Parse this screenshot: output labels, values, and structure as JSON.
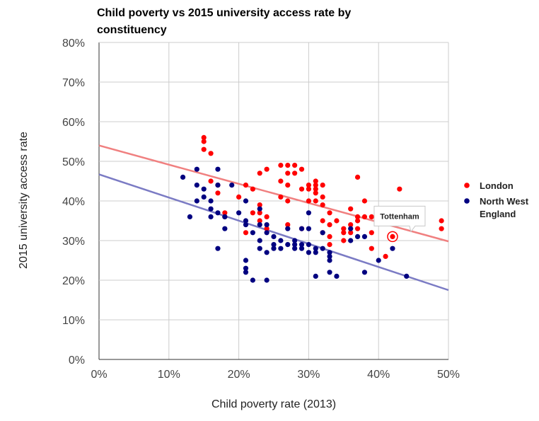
{
  "chart_data": {
    "type": "scatter",
    "title_lines": [
      "Child poverty vs 2015 university access rate by",
      "constituency"
    ],
    "xlabel": "Child poverty rate (2013)",
    "ylabel": "2015 university access rate",
    "xlim": [
      0,
      50
    ],
    "ylim": [
      0,
      80
    ],
    "x_ticks": [
      0,
      10,
      20,
      30,
      40,
      50
    ],
    "y_ticks": [
      0,
      10,
      20,
      30,
      40,
      50,
      60,
      70,
      80
    ],
    "x_tick_labels": [
      "0%",
      "10%",
      "20%",
      "30%",
      "40%",
      "50%"
    ],
    "y_tick_labels": [
      "0%",
      "10%",
      "20%",
      "30%",
      "40%",
      "50%",
      "60%",
      "70%",
      "80%"
    ],
    "grid": true,
    "legend_position": "right",
    "series": [
      {
        "name": "London",
        "color": "#ff0000",
        "trendline": {
          "color": "#f08080",
          "start": [
            0,
            54
          ],
          "end": [
            50,
            29.8
          ]
        },
        "points": [
          [
            15,
            56
          ],
          [
            15,
            55
          ],
          [
            15,
            53
          ],
          [
            16,
            52
          ],
          [
            16,
            45
          ],
          [
            17,
            44
          ],
          [
            17,
            42
          ],
          [
            18,
            37
          ],
          [
            18,
            36
          ],
          [
            20,
            41
          ],
          [
            21,
            44
          ],
          [
            21,
            32
          ],
          [
            22,
            43
          ],
          [
            22,
            37
          ],
          [
            23,
            47
          ],
          [
            23,
            39
          ],
          [
            23,
            37
          ],
          [
            23,
            35
          ],
          [
            24,
            48
          ],
          [
            24,
            36
          ],
          [
            24,
            33
          ],
          [
            26,
            49
          ],
          [
            26,
            45
          ],
          [
            26,
            41
          ],
          [
            27,
            49
          ],
          [
            27,
            47
          ],
          [
            27,
            44
          ],
          [
            27,
            40
          ],
          [
            27,
            34
          ],
          [
            28,
            49
          ],
          [
            28,
            47
          ],
          [
            29,
            48
          ],
          [
            29,
            43
          ],
          [
            29,
            33
          ],
          [
            30,
            44
          ],
          [
            30,
            43
          ],
          [
            30,
            40
          ],
          [
            31,
            45
          ],
          [
            31,
            44
          ],
          [
            31,
            43
          ],
          [
            31,
            42
          ],
          [
            31,
            40
          ],
          [
            32,
            44
          ],
          [
            32,
            41
          ],
          [
            32,
            39
          ],
          [
            32,
            35
          ],
          [
            32,
            32
          ],
          [
            33,
            37
          ],
          [
            33,
            34
          ],
          [
            33,
            31
          ],
          [
            33,
            29
          ],
          [
            34,
            35
          ],
          [
            35,
            33
          ],
          [
            35,
            30
          ],
          [
            35,
            32
          ],
          [
            36,
            38
          ],
          [
            36,
            34
          ],
          [
            36,
            32
          ],
          [
            37,
            46
          ],
          [
            37,
            36
          ],
          [
            37,
            35
          ],
          [
            37,
            33
          ],
          [
            38,
            40
          ],
          [
            38,
            36
          ],
          [
            39,
            36
          ],
          [
            39,
            32
          ],
          [
            39,
            28
          ],
          [
            40,
            35
          ],
          [
            41,
            26
          ],
          [
            43,
            43
          ],
          [
            49,
            35
          ],
          [
            49,
            33
          ]
        ]
      },
      {
        "name": "North West England",
        "color": "#000080",
        "trendline": {
          "color": "#7b7bc4",
          "start": [
            0,
            46.7
          ],
          "end": [
            50,
            17.5
          ]
        },
        "points": [
          [
            12,
            46
          ],
          [
            13,
            36
          ],
          [
            14,
            48
          ],
          [
            14,
            44
          ],
          [
            14,
            40
          ],
          [
            15,
            43
          ],
          [
            15,
            41
          ],
          [
            16,
            40
          ],
          [
            16,
            38
          ],
          [
            16,
            36
          ],
          [
            17,
            48
          ],
          [
            17,
            44
          ],
          [
            17,
            37
          ],
          [
            17,
            28
          ],
          [
            18,
            36
          ],
          [
            18,
            33
          ],
          [
            19,
            44
          ],
          [
            20,
            37
          ],
          [
            21,
            40
          ],
          [
            21,
            35
          ],
          [
            21,
            34
          ],
          [
            21,
            25
          ],
          [
            21,
            23
          ],
          [
            21,
            22
          ],
          [
            22,
            32
          ],
          [
            22,
            20
          ],
          [
            23,
            38
          ],
          [
            23,
            34
          ],
          [
            23,
            30
          ],
          [
            23,
            28
          ],
          [
            24,
            34
          ],
          [
            24,
            32
          ],
          [
            24,
            27
          ],
          [
            24,
            20
          ],
          [
            25,
            31
          ],
          [
            25,
            29
          ],
          [
            25,
            28
          ],
          [
            26,
            30
          ],
          [
            27,
            33
          ],
          [
            27,
            29
          ],
          [
            28,
            30
          ],
          [
            28,
            29
          ],
          [
            29,
            33
          ],
          [
            29,
            29
          ],
          [
            29,
            28
          ],
          [
            30,
            37
          ],
          [
            30,
            33
          ],
          [
            30,
            29
          ],
          [
            30,
            27
          ],
          [
            31,
            28
          ],
          [
            31,
            27
          ],
          [
            31,
            21
          ],
          [
            32,
            32
          ],
          [
            33,
            27
          ],
          [
            33,
            26
          ],
          [
            33,
            25
          ],
          [
            33,
            22
          ],
          [
            34,
            21
          ],
          [
            36,
            33
          ],
          [
            36,
            30
          ],
          [
            37,
            31
          ],
          [
            38,
            31
          ],
          [
            38,
            22
          ],
          [
            40,
            25
          ],
          [
            42,
            28
          ],
          [
            44,
            21
          ],
          [
            32,
            28
          ],
          [
            28,
            28
          ],
          [
            26,
            28
          ]
        ]
      }
    ],
    "annotation": {
      "label": "Tottenham",
      "series": "London",
      "x": 42,
      "y": 31
    }
  }
}
